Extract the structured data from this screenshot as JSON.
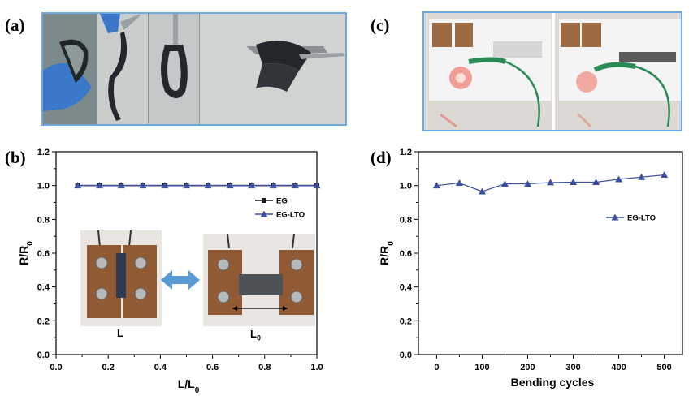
{
  "panels": {
    "a": "(a)",
    "b": "(b)",
    "c": "(c)",
    "d": "(d)"
  },
  "photo_captions": {
    "left_clamp": "L",
    "right_clamp": "L",
    "right_clamp_sub": "0"
  },
  "colors": {
    "eg": "#1a1a1a",
    "eg_lto": "#3b4f9e",
    "double_arrow": "#5b9bd5",
    "photo_frame": "#6fa8dc"
  },
  "chart_data": [
    {
      "type": "line",
      "panel": "b",
      "xlabel": "L/L",
      "xlabel_sub": "0",
      "ylabel": "R/R",
      "ylabel_sub": "0",
      "xlim": [
        0.0,
        1.0
      ],
      "ylim": [
        0.0,
        1.2
      ],
      "xticks": [
        "0.0",
        "0.2",
        "0.4",
        "0.6",
        "0.8",
        "1.0"
      ],
      "yticks": [
        "0.0",
        "0.2",
        "0.4",
        "0.6",
        "0.8",
        "1.0",
        "1.2"
      ],
      "x": [
        0.083,
        0.167,
        0.25,
        0.333,
        0.417,
        0.5,
        0.583,
        0.667,
        0.75,
        0.833,
        0.917,
        1.0
      ],
      "series": [
        {
          "name": "EG",
          "marker": "square",
          "values": [
            1.0,
            1.0,
            1.0,
            1.0,
            1.0,
            1.0,
            1.0,
            1.0,
            1.0,
            1.0,
            1.0,
            1.0
          ]
        },
        {
          "name": "EG-LTO",
          "marker": "triangle",
          "values": [
            1.0,
            1.0,
            1.0,
            1.0,
            1.0,
            1.0,
            1.0,
            1.0,
            1.0,
            1.0,
            1.0,
            1.0
          ]
        }
      ],
      "legend": "upper-right"
    },
    {
      "type": "line",
      "panel": "d",
      "xlabel": "Bending cycles",
      "ylabel": "R/R",
      "ylabel_sub": "0",
      "xlim": [
        -40,
        540
      ],
      "ylim": [
        0.0,
        1.2
      ],
      "xticks": [
        "0",
        "100",
        "200",
        "300",
        "400",
        "500"
      ],
      "yticks": [
        "0.0",
        "0.2",
        "0.4",
        "0.6",
        "0.8",
        "1.0",
        "1.2"
      ],
      "x": [
        0,
        50,
        100,
        150,
        200,
        250,
        300,
        350,
        400,
        450,
        500
      ],
      "series": [
        {
          "name": "EG-LTO",
          "marker": "triangle",
          "values": [
            1.0,
            1.015,
            0.965,
            1.01,
            1.01,
            1.018,
            1.02,
            1.02,
            1.037,
            1.05,
            1.063
          ]
        }
      ],
      "legend": "right"
    }
  ]
}
